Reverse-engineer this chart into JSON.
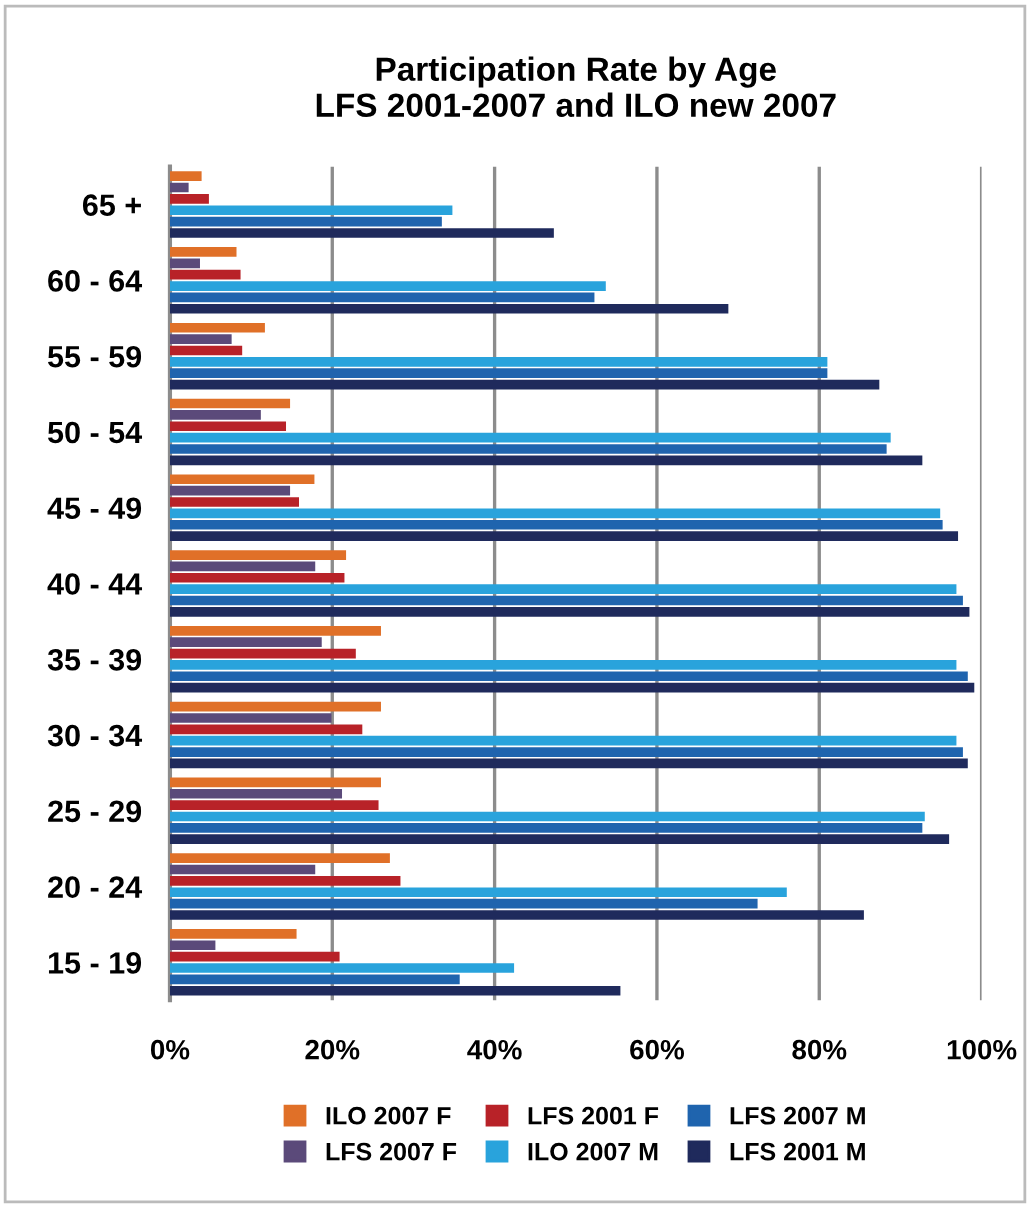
{
  "chart_data": {
    "type": "bar",
    "orientation": "horizontal",
    "title": "Participation Rate by Age\nLFS 2001-2007 and ILO new 2007",
    "categories": [
      "65 +",
      "60 - 64",
      "55 - 59",
      "50 - 54",
      "45 - 49",
      "40 - 44",
      "35 - 39",
      "30 - 34",
      "25 - 29",
      "20 - 24",
      "15 - 19"
    ],
    "series": [
      {
        "name": "ILO 2007 F",
        "color": "#e07028",
        "values": [
          3.9,
          8.2,
          11.7,
          14.8,
          17.8,
          21.7,
          26.0,
          26.0,
          26.0,
          27.1,
          15.6
        ]
      },
      {
        "name": "LFS 2007 F",
        "color": "#5b4a7a",
        "values": [
          2.3,
          3.7,
          7.6,
          11.2,
          14.8,
          17.9,
          18.7,
          19.9,
          21.2,
          17.9,
          5.6
        ]
      },
      {
        "name": "LFS 2001 F",
        "color": "#b82228",
        "values": [
          4.8,
          8.7,
          8.9,
          14.3,
          15.9,
          21.5,
          22.9,
          23.7,
          25.7,
          28.4,
          20.9
        ]
      },
      {
        "name": "ILO 2007 M",
        "color": "#29a3dc",
        "values": [
          34.8,
          53.7,
          81.0,
          88.8,
          94.9,
          96.9,
          96.9,
          96.9,
          93.0,
          76.0,
          42.4
        ]
      },
      {
        "name": "LFS 2007 M",
        "color": "#1f64ae",
        "values": [
          33.5,
          52.3,
          81.0,
          88.3,
          95.2,
          97.7,
          98.3,
          97.7,
          92.7,
          72.4,
          35.7
        ]
      },
      {
        "name": "LFS 2001 M",
        "color": "#1f2a5c",
        "values": [
          47.3,
          68.8,
          87.4,
          92.7,
          97.1,
          98.5,
          99.1,
          98.3,
          96.0,
          85.5,
          55.5
        ]
      }
    ],
    "xlim": [
      0,
      100
    ],
    "xticks": [
      {
        "value": 0,
        "label": "0%"
      },
      {
        "value": 20,
        "label": "20%"
      },
      {
        "value": 40,
        "label": "40%"
      },
      {
        "value": 60,
        "label": "60%"
      },
      {
        "value": 80,
        "label": "80%"
      },
      {
        "value": 100,
        "label": "100%"
      }
    ],
    "grid": "x",
    "legend": "bottom"
  }
}
